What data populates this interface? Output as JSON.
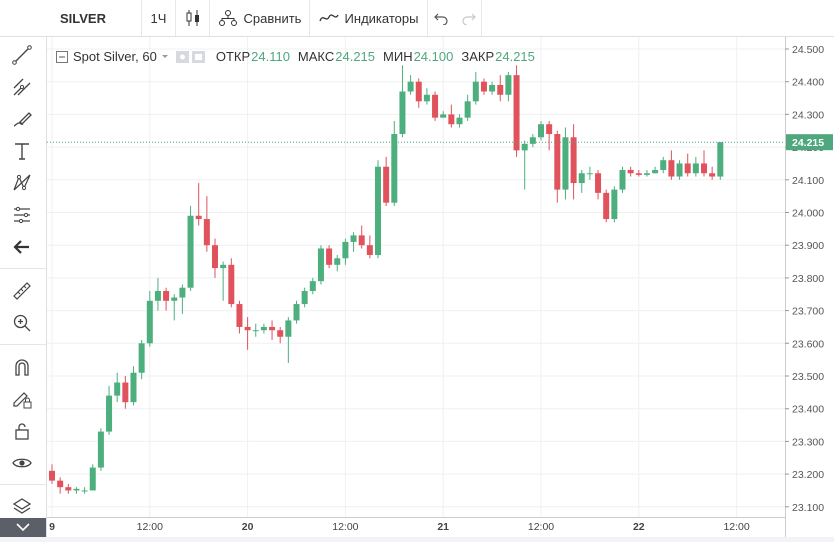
{
  "toolbar": {
    "symbol": "SILVER",
    "interval": "1Ч",
    "compare_label": "Сравнить",
    "indicators_label": "Индикаторы"
  },
  "legend": {
    "title": "Spot Silver, 60",
    "open_label": "ОТКР",
    "open_value": "24.110",
    "high_label": "МАКС",
    "high_value": "24.215",
    "low_label": "МИН",
    "low_value": "24.100",
    "close_label": "ЗАКР",
    "close_value": "24.215"
  },
  "colors": {
    "up": "#4caf7d",
    "down": "#e0525c",
    "last_price_bg": "#4fa77e",
    "accent": "#2196f3"
  },
  "chart_data": {
    "type": "candlestick",
    "y_ticks": [
      "24.500",
      "24.400",
      "24.300",
      "24.200",
      "24.100",
      "24.000",
      "23.900",
      "23.800",
      "23.700",
      "23.600",
      "23.500",
      "23.400",
      "23.300",
      "23.200",
      "23.100"
    ],
    "ylim": [
      23.08,
      24.52
    ],
    "x_tick_labels": [
      "9",
      "12:00",
      "20",
      "12:00",
      "21",
      "12:00",
      "22",
      "12:00"
    ],
    "x_tick_index": [
      0,
      12,
      24,
      36,
      48,
      60,
      72,
      84
    ],
    "last_price": "24.215",
    "candles": [
      [
        23.21,
        23.18,
        23.23,
        23.17
      ],
      [
        23.18,
        23.16,
        23.19,
        23.14
      ],
      [
        23.16,
        23.15,
        23.17,
        23.14
      ],
      [
        23.15,
        23.155,
        23.16,
        23.14
      ],
      [
        23.15,
        23.15,
        23.16,
        23.14
      ],
      [
        23.15,
        23.22,
        23.23,
        23.15
      ],
      [
        23.22,
        23.33,
        23.34,
        23.21
      ],
      [
        23.33,
        23.44,
        23.47,
        23.32
      ],
      [
        23.44,
        23.48,
        23.51,
        23.42
      ],
      [
        23.48,
        23.42,
        23.5,
        23.4
      ],
      [
        23.42,
        23.51,
        23.53,
        23.41
      ],
      [
        23.51,
        23.6,
        23.61,
        23.49
      ],
      [
        23.6,
        23.73,
        23.76,
        23.59
      ],
      [
        23.73,
        23.76,
        23.8,
        23.7
      ],
      [
        23.76,
        23.73,
        23.77,
        23.7
      ],
      [
        23.73,
        23.74,
        23.75,
        23.67
      ],
      [
        23.74,
        23.77,
        23.78,
        23.69
      ],
      [
        23.77,
        23.99,
        24.02,
        23.76
      ],
      [
        23.99,
        23.98,
        24.09,
        23.96
      ],
      [
        23.98,
        23.9,
        24.05,
        23.88
      ],
      [
        23.9,
        23.83,
        23.92,
        23.8
      ],
      [
        23.83,
        23.84,
        23.85,
        23.73
      ],
      [
        23.84,
        23.72,
        23.86,
        23.71
      ],
      [
        23.72,
        23.65,
        23.73,
        23.63
      ],
      [
        23.65,
        23.64,
        23.68,
        23.58
      ],
      [
        23.64,
        23.64,
        23.66,
        23.62
      ],
      [
        23.64,
        23.65,
        23.66,
        23.63
      ],
      [
        23.65,
        23.64,
        23.67,
        23.61
      ],
      [
        23.64,
        23.62,
        23.65,
        23.6
      ],
      [
        23.62,
        23.67,
        23.68,
        23.54
      ],
      [
        23.67,
        23.72,
        23.73,
        23.66
      ],
      [
        23.72,
        23.76,
        23.77,
        23.71
      ],
      [
        23.76,
        23.79,
        23.8,
        23.75
      ],
      [
        23.79,
        23.89,
        23.9,
        23.78
      ],
      [
        23.89,
        23.84,
        23.9,
        23.83
      ],
      [
        23.84,
        23.86,
        23.87,
        23.82
      ],
      [
        23.86,
        23.91,
        23.92,
        23.84
      ],
      [
        23.91,
        23.93,
        23.94,
        23.88
      ],
      [
        23.93,
        23.9,
        23.96,
        23.89
      ],
      [
        23.9,
        23.87,
        23.93,
        23.86
      ],
      [
        23.87,
        24.14,
        24.16,
        23.86
      ],
      [
        24.14,
        24.03,
        24.17,
        24.02
      ],
      [
        24.03,
        24.24,
        24.28,
        24.02
      ],
      [
        24.24,
        24.37,
        24.45,
        24.23
      ],
      [
        24.37,
        24.4,
        24.42,
        24.36
      ],
      [
        24.4,
        24.34,
        24.41,
        24.32
      ],
      [
        24.34,
        24.36,
        24.38,
        24.33
      ],
      [
        24.36,
        24.29,
        24.37,
        24.28
      ],
      [
        24.29,
        24.3,
        24.31,
        24.29
      ],
      [
        24.3,
        24.27,
        24.33,
        24.26
      ],
      [
        24.27,
        24.29,
        24.3,
        24.26
      ],
      [
        24.29,
        24.34,
        24.36,
        24.28
      ],
      [
        24.34,
        24.4,
        24.43,
        24.33
      ],
      [
        24.4,
        24.37,
        24.41,
        24.36
      ],
      [
        24.37,
        24.39,
        24.4,
        24.36
      ],
      [
        24.39,
        24.36,
        24.42,
        24.34
      ],
      [
        24.36,
        24.42,
        24.43,
        24.34
      ],
      [
        24.42,
        24.19,
        24.45,
        24.17
      ],
      [
        24.19,
        24.21,
        24.22,
        24.07
      ],
      [
        24.21,
        24.23,
        24.24,
        24.2
      ],
      [
        24.23,
        24.27,
        24.28,
        24.22
      ],
      [
        24.27,
        24.24,
        24.28,
        24.19
      ],
      [
        24.24,
        24.07,
        24.25,
        24.03
      ],
      [
        24.07,
        24.23,
        24.26,
        24.04
      ],
      [
        24.23,
        24.09,
        24.27,
        24.04
      ],
      [
        24.09,
        24.12,
        24.13,
        24.06
      ],
      [
        24.12,
        24.12,
        24.14,
        24.1
      ],
      [
        24.12,
        24.06,
        24.13,
        24.04
      ],
      [
        24.06,
        23.98,
        24.07,
        23.97
      ],
      [
        23.98,
        24.07,
        24.08,
        23.97
      ],
      [
        24.07,
        24.13,
        24.14,
        24.06
      ],
      [
        24.13,
        24.12,
        24.14,
        24.11
      ],
      [
        24.12,
        24.115,
        24.13,
        24.11
      ],
      [
        24.115,
        24.12,
        24.13,
        24.11
      ],
      [
        24.12,
        24.13,
        24.14,
        24.12
      ],
      [
        24.13,
        24.16,
        24.17,
        24.12
      ],
      [
        24.16,
        24.11,
        24.19,
        24.1
      ],
      [
        24.11,
        24.15,
        24.16,
        24.1
      ],
      [
        24.15,
        24.12,
        24.18,
        24.11
      ],
      [
        24.12,
        24.15,
        24.17,
        24.11
      ],
      [
        24.15,
        24.12,
        24.19,
        24.11
      ],
      [
        24.12,
        24.11,
        24.14,
        24.1
      ],
      [
        24.11,
        24.215,
        24.215,
        24.1
      ]
    ]
  }
}
